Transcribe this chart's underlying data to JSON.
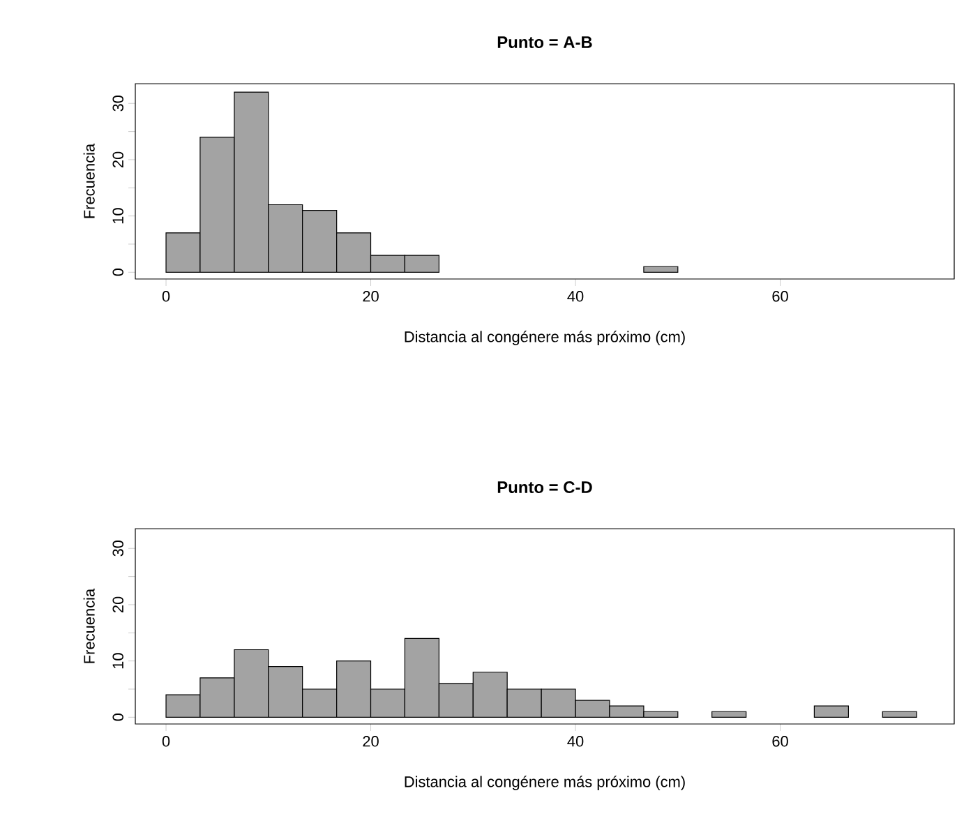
{
  "chart_data": [
    {
      "type": "histogram",
      "title": "Punto = A-B",
      "xlabel": "Distancia al congénere más próximo (cm)",
      "ylabel": "Frecuencia",
      "color": "#a3a3a3",
      "bins": [
        0,
        3.33,
        6.67,
        10,
        13.33,
        16.67,
        20,
        23.33,
        26.67,
        30,
        33.33,
        36.67,
        40,
        43.33,
        46.67,
        50
      ],
      "values": [
        7,
        24,
        32,
        12,
        11,
        7,
        3,
        3,
        0,
        0,
        0,
        0,
        0,
        0,
        1
      ],
      "xlim": [
        -3,
        77
      ],
      "ylim": [
        -1.2,
        33.5
      ],
      "xticks": [
        0,
        20,
        40,
        60
      ],
      "yticks": [
        0,
        {
          "value": 5,
          "label": null
        },
        10,
        {
          "value": 15,
          "label": null
        },
        20,
        {
          "value": 25,
          "label": null
        },
        30
      ]
    },
    {
      "type": "histogram",
      "title": "Punto = C-D",
      "xlabel": "Distancia al congénere más próximo (cm)",
      "ylabel": "Frecuencia",
      "color": "#a3a3a3",
      "bins": [
        0,
        3.33,
        6.67,
        10,
        13.33,
        16.67,
        20,
        23.33,
        26.67,
        30,
        33.33,
        36.67,
        40,
        43.33,
        46.67,
        50,
        53.33,
        56.67,
        60,
        63.33,
        66.67,
        70,
        73.33
      ],
      "values": [
        4,
        7,
        12,
        9,
        5,
        10,
        5,
        14,
        6,
        8,
        5,
        5,
        3,
        2,
        1,
        0,
        1,
        0,
        0,
        2,
        0,
        1
      ],
      "xlim": [
        -3,
        77
      ],
      "ylim": [
        -1.2,
        33.5
      ],
      "xticks": [
        0,
        20,
        40,
        60
      ],
      "yticks": [
        0,
        {
          "value": 5,
          "label": null
        },
        10,
        {
          "value": 15,
          "label": null
        },
        20,
        {
          "value": 25,
          "label": null
        },
        30
      ]
    }
  ]
}
